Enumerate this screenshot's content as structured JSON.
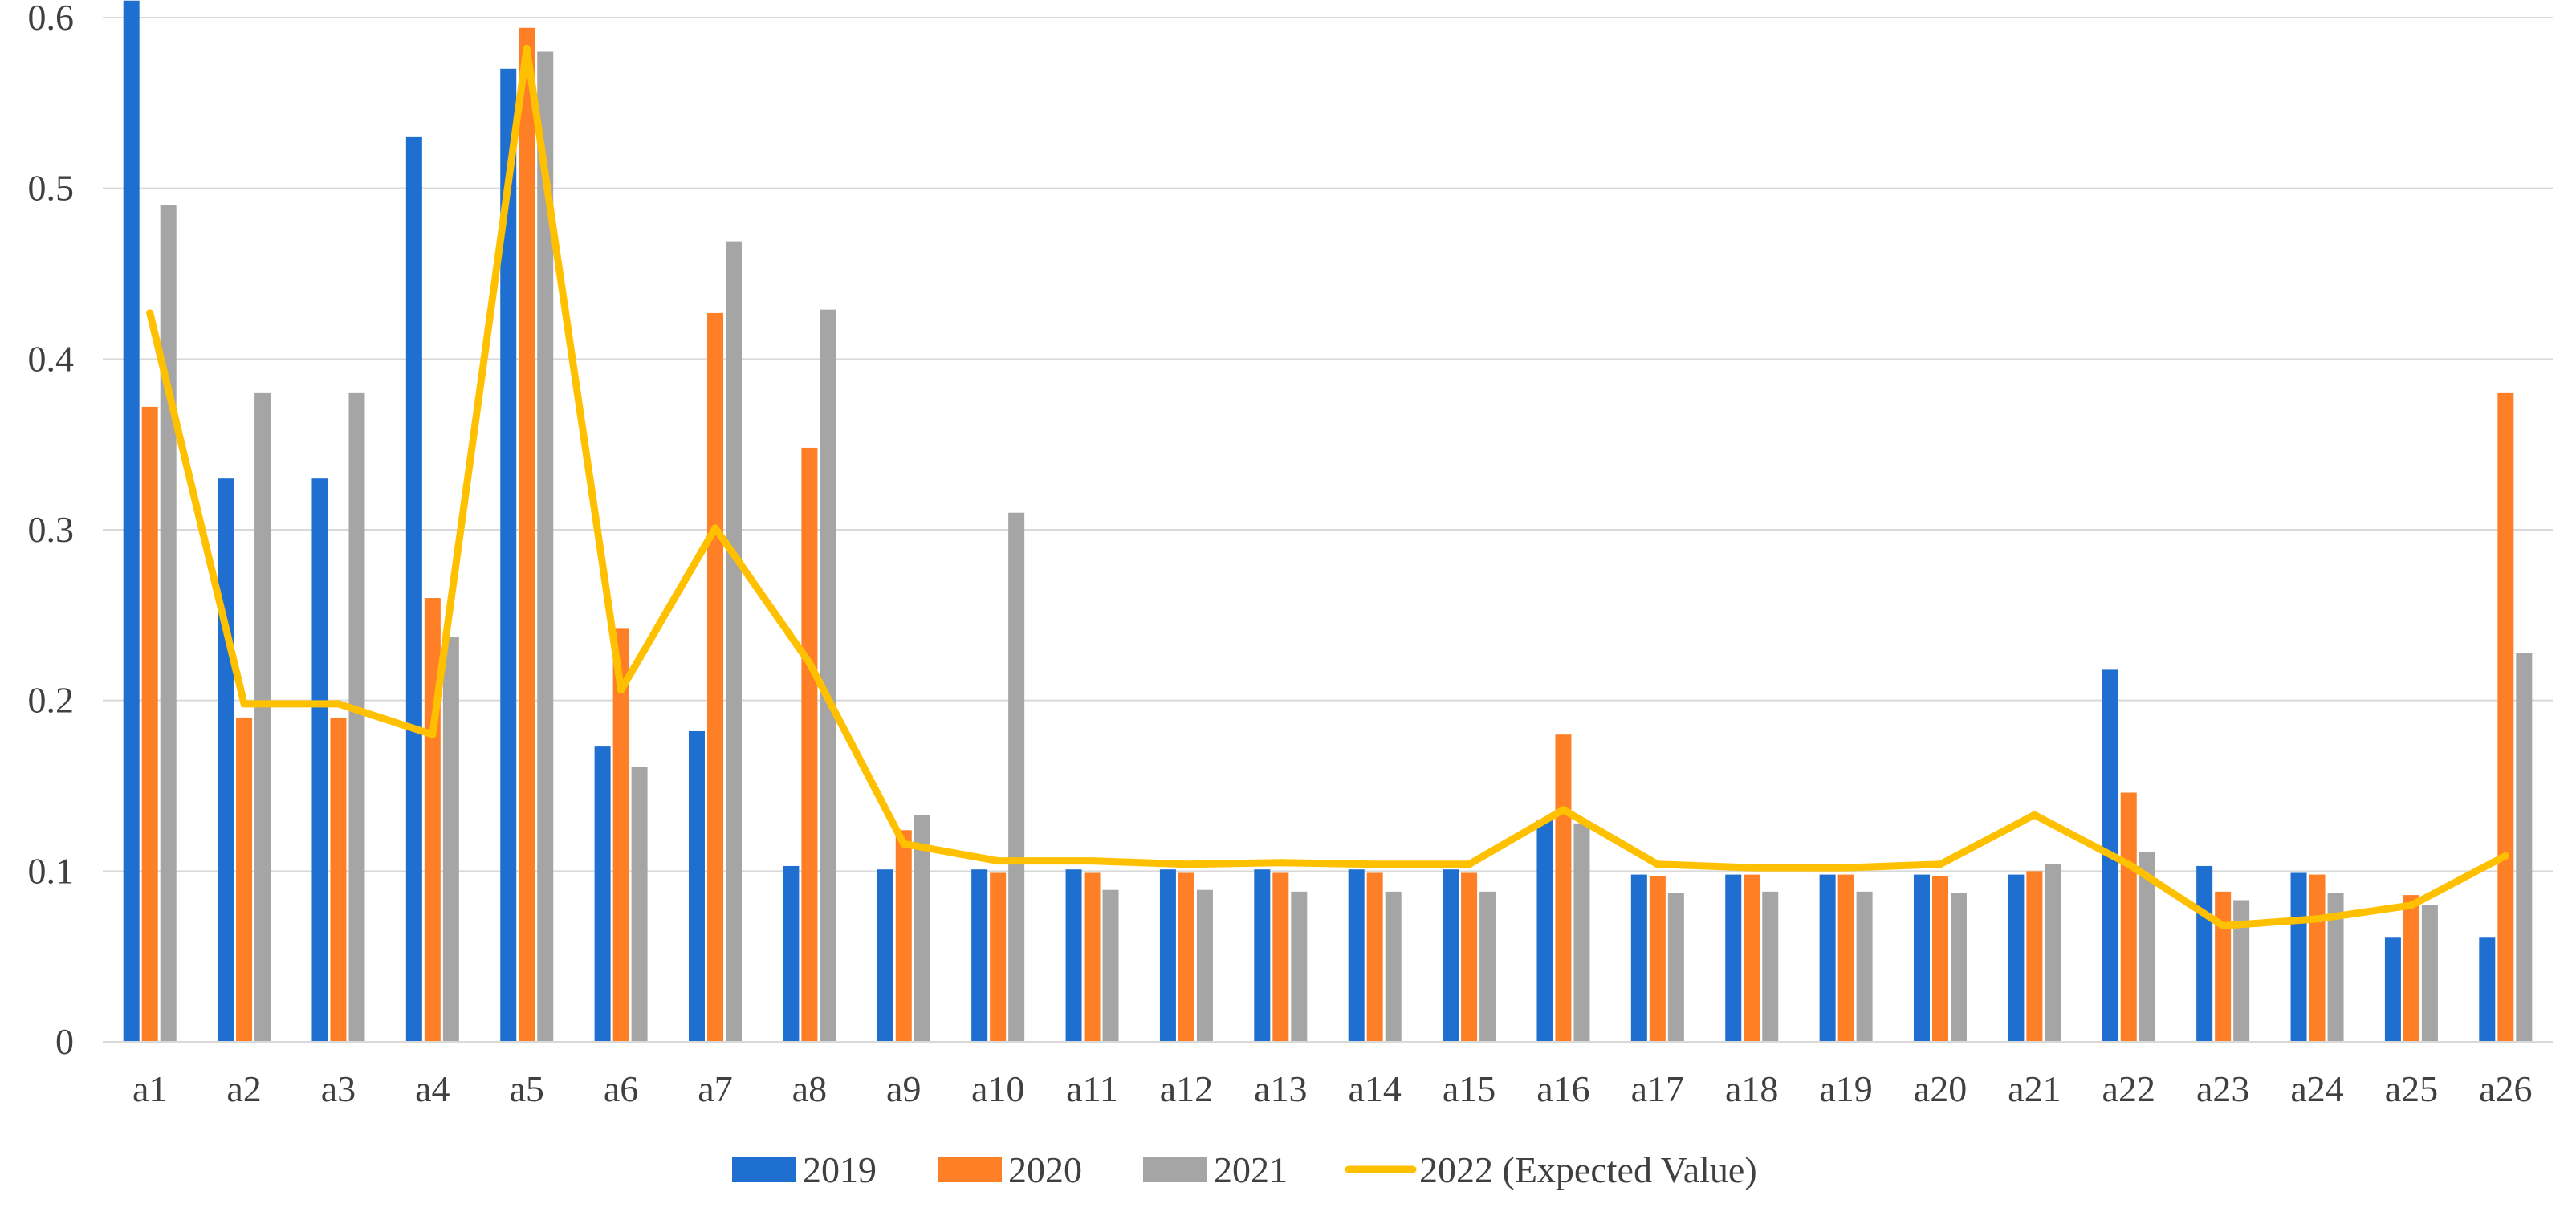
{
  "chart_data": {
    "type": "bar",
    "title": "",
    "xlabel": "",
    "ylabel": "",
    "ylim": [
      0,
      0.6
    ],
    "yticks": [
      "0",
      "0.1",
      "0.2",
      "0.3",
      "0.4",
      "0.5",
      "0.6"
    ],
    "grid": true,
    "legend_position": "bottom",
    "categories": [
      "a1",
      "a2",
      "a3",
      "a4",
      "a5",
      "a6",
      "a7",
      "a8",
      "a9",
      "a10",
      "a11",
      "a12",
      "a13",
      "a14",
      "a15",
      "a16",
      "a17",
      "a18",
      "a19",
      "a20",
      "a21",
      "a22",
      "a23",
      "a24",
      "a25",
      "a26"
    ],
    "series": [
      {
        "name": "2019",
        "type": "bar",
        "color": "#1F6FD0",
        "values": [
          0.61,
          0.33,
          0.33,
          0.53,
          0.57,
          0.173,
          0.182,
          0.103,
          0.101,
          0.101,
          0.101,
          0.101,
          0.101,
          0.101,
          0.101,
          0.13,
          0.098,
          0.098,
          0.098,
          0.098,
          0.098,
          0.218,
          0.103,
          0.099,
          0.061,
          0.061
        ]
      },
      {
        "name": "2020",
        "type": "bar",
        "color": "#FF7F27",
        "values": [
          0.372,
          0.19,
          0.19,
          0.26,
          0.594,
          0.242,
          0.427,
          0.348,
          0.124,
          0.099,
          0.099,
          0.099,
          0.099,
          0.099,
          0.099,
          0.18,
          0.097,
          0.098,
          0.098,
          0.097,
          0.1,
          0.146,
          0.088,
          0.098,
          0.086,
          0.38
        ]
      },
      {
        "name": "2021",
        "type": "bar",
        "color": "#A5A5A5",
        "values": [
          0.49,
          0.38,
          0.38,
          0.237,
          0.58,
          0.161,
          0.469,
          0.429,
          0.133,
          0.31,
          0.089,
          0.089,
          0.088,
          0.088,
          0.088,
          0.128,
          0.087,
          0.088,
          0.088,
          0.087,
          0.104,
          0.111,
          0.083,
          0.087,
          0.08,
          0.228
        ]
      },
      {
        "name": "2022 (Expected Value)",
        "type": "line",
        "color": "#FFC000",
        "values": [
          0.427,
          0.198,
          0.198,
          0.18,
          0.582,
          0.206,
          0.301,
          0.222,
          0.116,
          0.106,
          0.106,
          0.104,
          0.105,
          0.104,
          0.104,
          0.136,
          0.104,
          0.102,
          0.102,
          0.104,
          0.133,
          0.104,
          0.068,
          0.072,
          0.08,
          0.109
        ]
      }
    ]
  }
}
